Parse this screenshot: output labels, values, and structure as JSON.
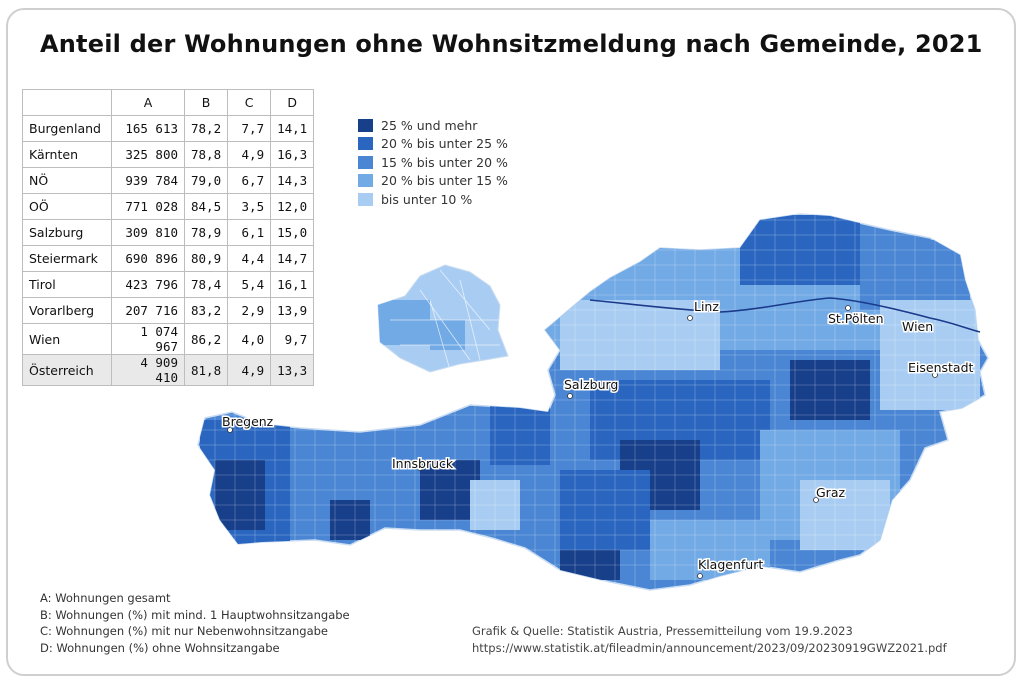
{
  "title": "Anteil der Wohnungen ohne Wohnsitzmeldung nach Gemeinde, 2021",
  "table": {
    "columns": [
      "",
      "A",
      "B",
      "C",
      "D"
    ],
    "rows": [
      [
        "Burgenland",
        "165 613",
        "78,2",
        "7,7",
        "14,1"
      ],
      [
        "Kärnten",
        "325 800",
        "78,8",
        "4,9",
        "16,3"
      ],
      [
        "NÖ",
        "939 784",
        "79,0",
        "6,7",
        "14,3"
      ],
      [
        "OÖ",
        "771 028",
        "84,5",
        "3,5",
        "12,0"
      ],
      [
        "Salzburg",
        "309 810",
        "78,9",
        "6,1",
        "15,0"
      ],
      [
        "Steiermark",
        "690 896",
        "80,9",
        "4,4",
        "14,7"
      ],
      [
        "Tirol",
        "423 796",
        "78,4",
        "5,4",
        "16,1"
      ],
      [
        "Vorarlberg",
        "207 716",
        "83,2",
        "2,9",
        "13,9"
      ],
      [
        "Wien",
        "1 074 967",
        "86,2",
        "4,0",
        "9,7"
      ],
      [
        "Österreich",
        "4 909 410",
        "81,8",
        "4,9",
        "13,3"
      ]
    ]
  },
  "legend": [
    {
      "label": "25 % und mehr",
      "color": "#173f8a"
    },
    {
      "label": "20 % bis unter 25 %",
      "color": "#2a66bf"
    },
    {
      "label": "15 % bis unter 20 %",
      "color": "#4a86d4"
    },
    {
      "label": "20 % bis unter 15 %",
      "color": "#72aae6"
    },
    {
      "label": "bis unter 10 %",
      "color": "#a9cdf2"
    }
  ],
  "cities": [
    "Bregenz",
    "Innsbruck",
    "Salzburg",
    "Linz",
    "St.Pölten",
    "Wien",
    "Eisenstadt",
    "Graz",
    "Klagenfurt"
  ],
  "notes": [
    "A: Wohnungen gesamt",
    "B: Wohnungen (%) mit mind. 1 Hauptwohnsitzangabe",
    "C: Wohnungen (%) mit nur Nebenwohnsitzangabe",
    "D: Wohnungen (%) ohne Wohnsitzangabe"
  ],
  "source": {
    "line1": "Grafik & Quelle: Statistik Austria, Pressemitteilung vom 19.9.2023",
    "line2": "https://www.statistik.at/fileadmin/announcement/2023/09/20230919GWZ2021.pdf"
  }
}
